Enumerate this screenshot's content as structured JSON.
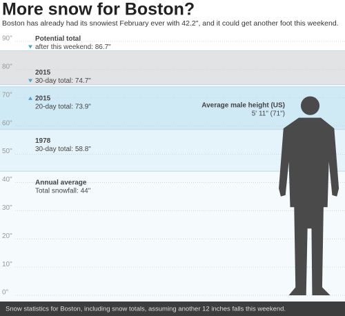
{
  "chart_data": {
    "type": "level",
    "title": "More snow for Boston?",
    "subtitle": "Boston has already had its snowiest February ever with 42.2\", and it could get another foot this weekend.",
    "footnote": "Snow statistics for Boston, including snow totals, assuming another 12 inches falls this weekend.",
    "ylim": [
      0,
      90
    ],
    "yticks": [
      {
        "value": 0,
        "label": "0\""
      },
      {
        "value": 10,
        "label": "10\""
      },
      {
        "value": 20,
        "label": "20\""
      },
      {
        "value": 30,
        "label": "30\""
      },
      {
        "value": 40,
        "label": "40\""
      },
      {
        "value": 50,
        "label": "50\""
      },
      {
        "value": 60,
        "label": "60\""
      },
      {
        "value": 70,
        "label": "70\""
      },
      {
        "value": 80,
        "label": "80\""
      },
      {
        "value": 90,
        "label": "90\""
      }
    ],
    "grid": true,
    "levels": [
      {
        "labels": [
          "Potential total",
          "after this weekend: 86.7\""
        ],
        "value": 86.7,
        "color": "#e2e3e4",
        "marker": "down"
      },
      {
        "labels": [
          "2015",
          "30-day total: 74.7\""
        ],
        "value": 74.7,
        "color": "#f4f5f6",
        "marker": "down"
      },
      {
        "labels": [
          "2015",
          "20-day total: 73.9\""
        ],
        "value": 73.9,
        "color": "#cfe9f5",
        "marker": "up"
      },
      {
        "labels": [
          "1978",
          "30-day total: 58.8\""
        ],
        "value": 58.8,
        "color": "#e5f3fa"
      },
      {
        "labels": [
          "Annual average",
          "Total snowfall: 44\""
        ],
        "value": 44,
        "color": "#f5fafd"
      }
    ],
    "person": {
      "labels": [
        "Average male height (US)",
        "5' 11\" (71\")"
      ],
      "value": 71,
      "color": "#4a4a4a"
    }
  }
}
